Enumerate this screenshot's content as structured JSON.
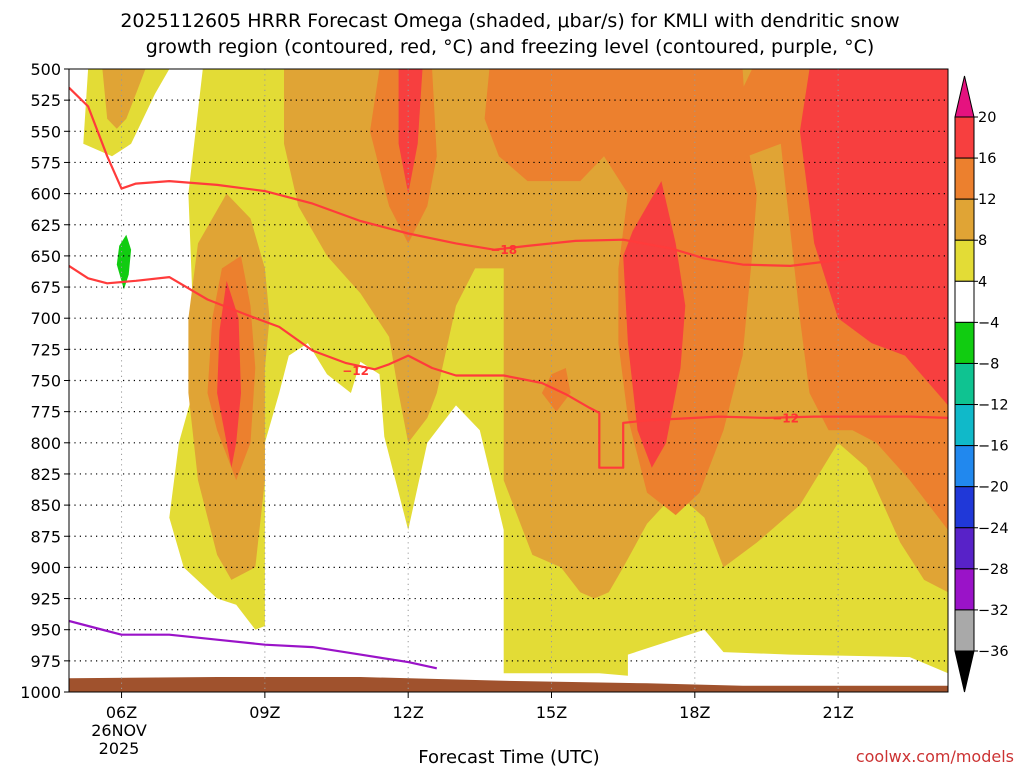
{
  "chart_data": {
    "type": "time-height cross section",
    "title_line1": "2025112605 HRRR Forecast Omega (shaded, μbar/s) for KMLI with dendritic snow",
    "title_line2": "growth region (contoured, red, °C) and freezing level (contoured, purple, °C)",
    "xlabel": "Forecast Time (UTC)",
    "credit": "coolwx.com/models",
    "x_range_hours": [
      4.9,
      23.3
    ],
    "y_range_mb": [
      500,
      1000
    ],
    "y_ticks": [
      500,
      525,
      550,
      575,
      600,
      625,
      650,
      675,
      700,
      725,
      750,
      775,
      800,
      825,
      850,
      875,
      900,
      925,
      950,
      975,
      1000
    ],
    "x_ticks": [
      {
        "hour": 6,
        "label": "06Z"
      },
      {
        "hour": 9,
        "label": "09Z"
      },
      {
        "hour": 12,
        "label": "12Z"
      },
      {
        "hour": 15,
        "label": "15Z"
      },
      {
        "hour": 18,
        "label": "18Z"
      },
      {
        "hour": 21,
        "label": "21Z"
      }
    ],
    "date_label_line1": "26NOV",
    "date_label_line2": "2025",
    "colorbar": {
      "labels": [
        "20",
        "16",
        "12",
        "8",
        "4",
        "-4",
        "-8",
        "-12",
        "-16",
        "-20",
        "-24",
        "-28",
        "-32",
        "-36"
      ],
      "bins": [
        {
          "low": 16,
          "high": 20,
          "color": "#f73f3f"
        },
        {
          "low": 12,
          "high": 16,
          "color": "#ec802e"
        },
        {
          "low": 8,
          "high": 12,
          "color": "#e0a435"
        },
        {
          "low": 4,
          "high": 8,
          "color": "#e3dc36"
        },
        {
          "low": -4,
          "high": 4,
          "color": "#ffffff"
        },
        {
          "low": -8,
          "high": -4,
          "color": "#11cc11"
        },
        {
          "low": -12,
          "high": -8,
          "color": "#0fc391"
        },
        {
          "low": -16,
          "high": -12,
          "color": "#10b9c9"
        },
        {
          "low": -20,
          "high": -16,
          "color": "#2188ee"
        },
        {
          "low": -24,
          "high": -20,
          "color": "#2038d8"
        },
        {
          "low": -28,
          "high": -24,
          "color": "#5822c8"
        },
        {
          "low": -32,
          "high": -28,
          "color": "#9a13c8"
        },
        {
          "low": -36,
          "high": -32,
          "color": "#a9a9a9"
        }
      ],
      "top_arrow_color": "#e5127f",
      "bottom_arrow_color": "#000000"
    },
    "omega_regions": [
      {
        "level": 4,
        "name": "omega-4-region-a",
        "points": [
          [
            5.3,
            500
          ],
          [
            5.2,
            560
          ],
          [
            5.8,
            570
          ],
          [
            6.2,
            560
          ],
          [
            6.7,
            520
          ],
          [
            7.0,
            500
          ]
        ]
      },
      {
        "level": 4,
        "name": "omega-4-region-b",
        "points": [
          [
            7.6,
            745
          ],
          [
            7.2,
            800
          ],
          [
            7.0,
            860
          ],
          [
            7.3,
            900
          ],
          [
            8.0,
            925
          ],
          [
            8.4,
            930
          ],
          [
            8.8,
            950
          ],
          [
            9.0,
            947
          ],
          [
            9.0,
            900
          ],
          [
            9.0,
            800
          ],
          [
            9.3,
            760
          ],
          [
            9.5,
            730
          ],
          [
            9.9,
            720
          ],
          [
            10.3,
            745
          ],
          [
            10.8,
            760
          ],
          [
            11.0,
            735
          ],
          [
            11.4,
            745
          ],
          [
            11.5,
            795
          ],
          [
            12.0,
            870
          ],
          [
            12.4,
            800
          ],
          [
            13.0,
            770
          ],
          [
            13.5,
            790
          ],
          [
            14.0,
            870
          ],
          [
            14.0,
            960
          ],
          [
            14.0,
            985
          ],
          [
            16.0,
            985
          ],
          [
            16.6,
            987
          ],
          [
            16.6,
            970
          ],
          [
            18.2,
            950
          ],
          [
            18.6,
            968
          ],
          [
            20.0,
            970
          ],
          [
            22.5,
            972
          ],
          [
            23.3,
            985
          ],
          [
            23.3,
            500
          ],
          [
            7.7,
            500
          ],
          [
            7.4,
            600
          ],
          [
            7.5,
            700
          ]
        ]
      },
      {
        "level": 8,
        "name": "omega-8-region-a",
        "points": [
          [
            5.6,
            500
          ],
          [
            5.7,
            540
          ],
          [
            5.9,
            548
          ],
          [
            6.1,
            540
          ],
          [
            6.4,
            510
          ],
          [
            6.5,
            500
          ]
        ]
      },
      {
        "level": 8,
        "name": "omega-8-region-b",
        "points": [
          [
            7.6,
            640
          ],
          [
            7.4,
            700
          ],
          [
            7.4,
            760
          ],
          [
            7.6,
            830
          ],
          [
            8.0,
            890
          ],
          [
            8.3,
            910
          ],
          [
            8.8,
            900
          ],
          [
            9.0,
            830
          ],
          [
            9.0,
            740
          ],
          [
            9.1,
            700
          ],
          [
            9.0,
            660
          ],
          [
            8.7,
            620
          ],
          [
            8.2,
            600
          ]
        ]
      },
      {
        "level": 8,
        "name": "omega-8-region-c",
        "points": [
          [
            9.4,
            500
          ],
          [
            9.4,
            560
          ],
          [
            9.7,
            610
          ],
          [
            10.3,
            650
          ],
          [
            11.0,
            680
          ],
          [
            11.6,
            715
          ],
          [
            11.8,
            760
          ],
          [
            12.0,
            800
          ],
          [
            12.4,
            780
          ],
          [
            12.6,
            760
          ],
          [
            13.0,
            690
          ],
          [
            13.4,
            660
          ],
          [
            14.0,
            660
          ],
          [
            14.0,
            830
          ],
          [
            14.4,
            870
          ],
          [
            14.6,
            890
          ],
          [
            15.2,
            900
          ],
          [
            15.6,
            920
          ],
          [
            15.9,
            925
          ],
          [
            16.2,
            920
          ],
          [
            16.5,
            900
          ],
          [
            17.0,
            865
          ],
          [
            17.6,
            840
          ],
          [
            18.2,
            860
          ],
          [
            18.6,
            900
          ],
          [
            19.3,
            880
          ],
          [
            20.2,
            850
          ],
          [
            21.0,
            800
          ],
          [
            21.6,
            820
          ],
          [
            22.3,
            880
          ],
          [
            22.8,
            910
          ],
          [
            23.3,
            920
          ],
          [
            23.3,
            500
          ]
        ]
      },
      {
        "level": 12,
        "name": "omega-12-region-a",
        "points": [
          [
            7.9,
            700
          ],
          [
            7.8,
            760
          ],
          [
            8.0,
            790
          ],
          [
            8.4,
            830
          ],
          [
            8.7,
            800
          ],
          [
            8.8,
            740
          ],
          [
            8.7,
            690
          ],
          [
            8.5,
            650
          ],
          [
            8.1,
            660
          ]
        ]
      },
      {
        "level": 12,
        "name": "omega-12-region-b",
        "points": [
          [
            11.4,
            500
          ],
          [
            11.2,
            550
          ],
          [
            11.6,
            610
          ],
          [
            12.0,
            640
          ],
          [
            12.4,
            610
          ],
          [
            12.6,
            570
          ],
          [
            12.5,
            500
          ]
        ]
      },
      {
        "level": 12,
        "name": "omega-12-region-c",
        "points": [
          [
            13.7,
            500
          ],
          [
            13.6,
            540
          ],
          [
            13.9,
            570
          ],
          [
            14.5,
            590
          ],
          [
            15.6,
            590
          ],
          [
            16.1,
            570
          ],
          [
            16.6,
            600
          ],
          [
            16.4,
            660
          ],
          [
            16.4,
            720
          ],
          [
            16.6,
            780
          ],
          [
            17.0,
            840
          ],
          [
            17.6,
            858
          ],
          [
            18.1,
            840
          ],
          [
            18.6,
            790
          ],
          [
            19.0,
            730
          ],
          [
            19.2,
            650
          ],
          [
            19.3,
            600
          ],
          [
            19.1,
            560
          ],
          [
            19.0,
            500
          ]
        ]
      },
      {
        "level": 12,
        "name": "omega-12-region-d",
        "points": [
          [
            19.2,
            500
          ],
          [
            18.7,
            540
          ],
          [
            18.9,
            580
          ],
          [
            19.1,
            570
          ],
          [
            19.8,
            560
          ],
          [
            20.2,
            700
          ],
          [
            20.4,
            760
          ],
          [
            20.8,
            790
          ],
          [
            21.3,
            790
          ],
          [
            21.8,
            800
          ],
          [
            22.5,
            830
          ],
          [
            23.3,
            870
          ],
          [
            23.3,
            500
          ]
        ]
      },
      {
        "level": 12,
        "name": "omega-12-region-e",
        "points": [
          [
            14.8,
            760
          ],
          [
            15.1,
            775
          ],
          [
            15.4,
            760
          ],
          [
            15.3,
            740
          ],
          [
            15.0,
            745
          ]
        ]
      },
      {
        "level": 16,
        "name": "omega-16-region-a",
        "points": [
          [
            8.0,
            760
          ],
          [
            8.2,
            800
          ],
          [
            8.3,
            820
          ],
          [
            8.4,
            800
          ],
          [
            8.5,
            760
          ],
          [
            8.45,
            700
          ],
          [
            8.2,
            670
          ],
          [
            8.05,
            710
          ]
        ]
      },
      {
        "level": 16,
        "name": "omega-16-region-b",
        "points": [
          [
            11.8,
            500
          ],
          [
            11.8,
            560
          ],
          [
            12.0,
            600
          ],
          [
            12.2,
            560
          ],
          [
            12.3,
            500
          ]
        ]
      },
      {
        "level": 16,
        "name": "omega-16-region-c",
        "points": [
          [
            16.5,
            650
          ],
          [
            16.6,
            720
          ],
          [
            16.8,
            790
          ],
          [
            17.1,
            820
          ],
          [
            17.4,
            800
          ],
          [
            17.7,
            740
          ],
          [
            17.8,
            690
          ],
          [
            17.6,
            640
          ],
          [
            17.3,
            590
          ],
          [
            17.0,
            610
          ],
          [
            16.7,
            630
          ]
        ]
      },
      {
        "level": 16,
        "name": "omega-16-region-d",
        "points": [
          [
            20.4,
            500
          ],
          [
            20.2,
            550
          ],
          [
            20.5,
            640
          ],
          [
            21.0,
            700
          ],
          [
            21.7,
            720
          ],
          [
            22.4,
            730
          ],
          [
            23.3,
            770
          ],
          [
            23.3,
            500
          ]
        ]
      },
      {
        "level": -8,
        "name": "omega-neg8-region-a",
        "points": [
          [
            5.9,
            657
          ],
          [
            5.95,
            642
          ],
          [
            6.1,
            633
          ],
          [
            6.2,
            645
          ],
          [
            6.15,
            665
          ],
          [
            6.05,
            677
          ]
        ]
      }
    ],
    "contours": [
      {
        "name": "dgz-contour-upper",
        "color": "#ff3b3b",
        "points": [
          [
            4.9,
            515
          ],
          [
            5.3,
            530
          ],
          [
            5.7,
            570
          ],
          [
            6.0,
            596
          ],
          [
            6.3,
            592
          ],
          [
            7.0,
            590
          ],
          [
            8.0,
            593
          ],
          [
            9.0,
            598
          ],
          [
            10.0,
            608
          ],
          [
            11.0,
            622
          ],
          [
            12.0,
            632
          ],
          [
            13.0,
            640
          ],
          [
            13.8,
            645
          ],
          [
            14.5,
            642
          ],
          [
            15.5,
            638
          ],
          [
            16.5,
            637
          ],
          [
            17.5,
            644
          ],
          [
            18.2,
            652
          ],
          [
            19.0,
            657
          ],
          [
            20.0,
            658
          ],
          [
            21.3,
            652
          ]
        ]
      },
      {
        "name": "dgz-contour-lower",
        "color": "#ff3b3b",
        "points": [
          [
            4.9,
            658
          ],
          [
            5.3,
            668
          ],
          [
            5.7,
            672
          ],
          [
            6.3,
            670
          ],
          [
            7.0,
            667
          ],
          [
            7.8,
            685
          ],
          [
            8.6,
            697
          ],
          [
            9.3,
            707
          ],
          [
            10.0,
            726
          ],
          [
            10.7,
            736
          ],
          [
            11.3,
            741
          ],
          [
            11.6,
            737
          ],
          [
            12.0,
            730
          ],
          [
            12.5,
            740
          ],
          [
            13.0,
            746
          ],
          [
            14.0,
            746
          ],
          [
            14.8,
            752
          ],
          [
            15.3,
            761
          ],
          [
            15.8,
            772
          ],
          [
            16.0,
            776
          ],
          [
            16.0,
            820
          ],
          [
            16.5,
            820
          ],
          [
            16.5,
            784
          ],
          [
            17.0,
            782
          ],
          [
            17.5,
            781
          ],
          [
            18.5,
            779
          ],
          [
            19.5,
            780
          ],
          [
            20.5,
            779
          ],
          [
            21.5,
            779
          ],
          [
            22.5,
            779
          ],
          [
            23.3,
            780
          ]
        ]
      },
      {
        "name": "freezing-level-contour",
        "color": "#9a13c8",
        "points": [
          [
            4.9,
            943
          ],
          [
            5.5,
            949
          ],
          [
            6.0,
            954
          ],
          [
            7.0,
            954
          ],
          [
            8.0,
            958
          ],
          [
            9.0,
            962
          ],
          [
            10.0,
            964
          ],
          [
            11.0,
            970
          ],
          [
            12.0,
            976
          ],
          [
            12.6,
            981
          ]
        ]
      }
    ],
    "contour_labels": [
      {
        "text": "-18",
        "hour": 14.0,
        "mb": 645
      },
      {
        "text": "-12",
        "hour": 10.9,
        "mb": 742
      },
      {
        "text": "-12",
        "hour": 19.9,
        "mb": 780
      }
    ],
    "terrain": {
      "name": "surface-terrain",
      "color": "#a0522d",
      "top_points": [
        [
          4.9,
          989
        ],
        [
          8.0,
          988
        ],
        [
          11.0,
          988
        ],
        [
          14.0,
          991
        ],
        [
          17.0,
          993
        ],
        [
          19.0,
          995
        ],
        [
          23.3,
          995
        ]
      ]
    }
  }
}
